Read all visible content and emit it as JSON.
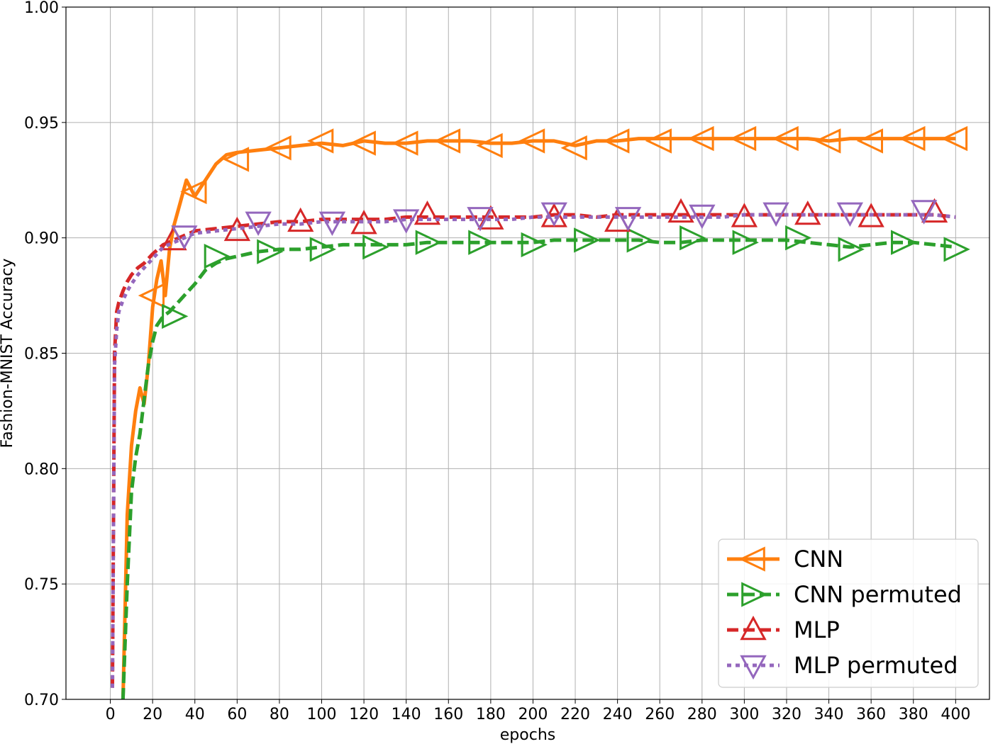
{
  "chart_data": {
    "type": "line",
    "title": "",
    "xlabel": "epochs",
    "ylabel": "Fashion-MNIST Accuracy",
    "xlim": [
      -21,
      416
    ],
    "ylim": [
      0.7,
      1.0
    ],
    "x_ticks": [
      0,
      20,
      40,
      60,
      80,
      100,
      120,
      140,
      160,
      180,
      200,
      220,
      240,
      260,
      280,
      300,
      320,
      340,
      360,
      380,
      400
    ],
    "y_ticks": [
      0.7,
      0.75,
      0.8,
      0.85,
      0.9,
      0.95,
      1.0
    ],
    "grid": true,
    "legend_position": "bottom-right",
    "series": [
      {
        "name": "CNN",
        "color": "#ff7f0e",
        "line_style": "solid",
        "marker": "triangle-left",
        "x": [
          6,
          8,
          10,
          12,
          14,
          16,
          18,
          20,
          22,
          24,
          26,
          28,
          30,
          33,
          36,
          40,
          45,
          50,
          55,
          60,
          70,
          80,
          90,
          100,
          110,
          120,
          130,
          140,
          150,
          160,
          170,
          180,
          190,
          200,
          210,
          220,
          230,
          240,
          250,
          260,
          270,
          280,
          290,
          300,
          310,
          320,
          330,
          340,
          350,
          360,
          370,
          380,
          390,
          400
        ],
        "y": [
          0.7,
          0.78,
          0.81,
          0.825,
          0.835,
          0.828,
          0.845,
          0.87,
          0.882,
          0.89,
          0.875,
          0.895,
          0.905,
          0.915,
          0.925,
          0.918,
          0.925,
          0.932,
          0.936,
          0.937,
          0.938,
          0.939,
          0.94,
          0.941,
          0.94,
          0.942,
          0.941,
          0.941,
          0.942,
          0.942,
          0.942,
          0.941,
          0.941,
          0.942,
          0.942,
          0.94,
          0.942,
          0.942,
          0.943,
          0.943,
          0.943,
          0.943,
          0.943,
          0.943,
          0.943,
          0.943,
          0.943,
          0.942,
          0.943,
          0.943,
          0.943,
          0.943,
          0.943,
          0.943
        ],
        "marker_x": [
          20,
          40,
          60,
          80,
          100,
          120,
          140,
          160,
          180,
          200,
          220,
          240,
          260,
          280,
          300,
          320,
          340,
          360,
          380,
          400
        ],
        "marker_y": [
          0.875,
          0.92,
          0.934,
          0.939,
          0.942,
          0.941,
          0.941,
          0.942,
          0.94,
          0.942,
          0.939,
          0.942,
          0.942,
          0.943,
          0.943,
          0.943,
          0.942,
          0.942,
          0.943,
          0.943
        ]
      },
      {
        "name": "CNN permuted",
        "color": "#2ca02c",
        "line_style": "dashed",
        "marker": "triangle-right",
        "x": [
          6,
          8,
          10,
          12,
          14,
          16,
          18,
          20,
          22,
          25,
          28,
          32,
          36,
          40,
          45,
          50,
          55,
          60,
          70,
          80,
          90,
          100,
          110,
          120,
          130,
          140,
          150,
          160,
          170,
          180,
          190,
          200,
          210,
          220,
          230,
          240,
          250,
          260,
          270,
          280,
          290,
          300,
          310,
          320,
          330,
          340,
          350,
          360,
          370,
          380,
          390,
          400
        ],
        "y": [
          0.7,
          0.75,
          0.79,
          0.805,
          0.815,
          0.83,
          0.845,
          0.855,
          0.862,
          0.866,
          0.868,
          0.872,
          0.876,
          0.88,
          0.886,
          0.889,
          0.891,
          0.892,
          0.894,
          0.895,
          0.895,
          0.896,
          0.897,
          0.897,
          0.897,
          0.897,
          0.898,
          0.898,
          0.898,
          0.898,
          0.898,
          0.898,
          0.899,
          0.899,
          0.899,
          0.899,
          0.899,
          0.898,
          0.898,
          0.899,
          0.899,
          0.899,
          0.899,
          0.899,
          0.898,
          0.897,
          0.896,
          0.897,
          0.898,
          0.898,
          0.897,
          0.896
        ],
        "marker_x": [
          30,
          50,
          75,
          100,
          125,
          150,
          175,
          200,
          225,
          250,
          275,
          300,
          325,
          350,
          375,
          400
        ],
        "marker_y": [
          0.866,
          0.892,
          0.894,
          0.895,
          0.896,
          0.898,
          0.898,
          0.897,
          0.899,
          0.899,
          0.9,
          0.898,
          0.9,
          0.895,
          0.898,
          0.895
        ]
      },
      {
        "name": "MLP",
        "color": "#d62728",
        "line_style": "dashed",
        "marker": "triangle-up",
        "x": [
          1,
          2,
          3,
          4,
          6,
          8,
          10,
          13,
          16,
          20,
          25,
          30,
          35,
          40,
          50,
          60,
          70,
          80,
          90,
          100,
          110,
          120,
          130,
          140,
          150,
          160,
          170,
          180,
          190,
          200,
          210,
          220,
          230,
          240,
          250,
          260,
          270,
          280,
          290,
          300,
          310,
          320,
          330,
          340,
          350,
          360,
          370,
          380,
          390,
          400
        ],
        "y": [
          0.705,
          0.85,
          0.868,
          0.872,
          0.877,
          0.881,
          0.884,
          0.887,
          0.889,
          0.893,
          0.897,
          0.899,
          0.901,
          0.903,
          0.904,
          0.905,
          0.906,
          0.907,
          0.907,
          0.908,
          0.908,
          0.908,
          0.908,
          0.909,
          0.909,
          0.909,
          0.909,
          0.909,
          0.909,
          0.909,
          0.91,
          0.91,
          0.909,
          0.91,
          0.91,
          0.91,
          0.91,
          0.91,
          0.91,
          0.91,
          0.91,
          0.91,
          0.91,
          0.91,
          0.91,
          0.91,
          0.91,
          0.91,
          0.91,
          0.909
        ],
        "marker_x": [
          30,
          60,
          90,
          120,
          150,
          180,
          210,
          240,
          270,
          300,
          330,
          360,
          390
        ],
        "marker_y": [
          0.899,
          0.903,
          0.907,
          0.906,
          0.91,
          0.908,
          0.909,
          0.907,
          0.911,
          0.909,
          0.91,
          0.909,
          0.911
        ]
      },
      {
        "name": "MLP permuted",
        "color": "#9467bd",
        "line_style": "dotted",
        "marker": "triangle-down",
        "x": [
          1,
          2,
          3,
          4,
          6,
          8,
          10,
          13,
          16,
          20,
          25,
          30,
          35,
          40,
          50,
          60,
          70,
          80,
          90,
          100,
          110,
          120,
          130,
          140,
          150,
          160,
          170,
          180,
          190,
          200,
          210,
          220,
          230,
          240,
          250,
          260,
          270,
          280,
          290,
          300,
          310,
          320,
          330,
          340,
          350,
          360,
          370,
          380,
          390,
          400
        ],
        "y": [
          0.705,
          0.845,
          0.86,
          0.868,
          0.873,
          0.877,
          0.88,
          0.884,
          0.887,
          0.891,
          0.896,
          0.898,
          0.9,
          0.902,
          0.903,
          0.904,
          0.905,
          0.906,
          0.906,
          0.907,
          0.907,
          0.907,
          0.907,
          0.908,
          0.908,
          0.908,
          0.908,
          0.908,
          0.908,
          0.909,
          0.909,
          0.909,
          0.909,
          0.909,
          0.909,
          0.909,
          0.909,
          0.909,
          0.909,
          0.91,
          0.91,
          0.91,
          0.91,
          0.91,
          0.91,
          0.91,
          0.91,
          0.91,
          0.91,
          0.909
        ],
        "marker_x": [
          35,
          70,
          105,
          140,
          175,
          210,
          245,
          280,
          315,
          350,
          385
        ],
        "marker_y": [
          0.901,
          0.907,
          0.907,
          0.908,
          0.909,
          0.911,
          0.909,
          0.91,
          0.911,
          0.911,
          0.912
        ]
      }
    ]
  }
}
